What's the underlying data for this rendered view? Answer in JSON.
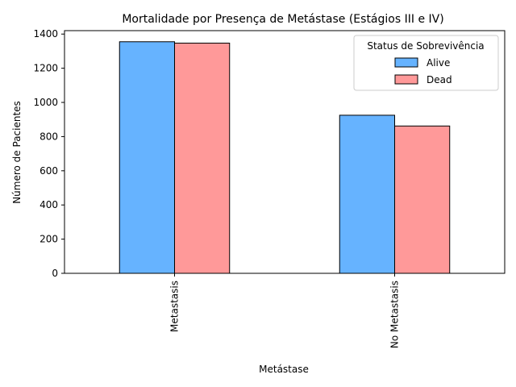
{
  "chart_data": {
    "type": "bar",
    "title": "Mortalidade por Presença de Metástase (Estágios III e IV)",
    "xlabel": "Metástase",
    "ylabel": "Número de Pacientes",
    "categories": [
      "Metastasis",
      "No Metastasis"
    ],
    "series": [
      {
        "name": "Alive",
        "values": [
          1355,
          925
        ],
        "color": "#66b3ff"
      },
      {
        "name": "Dead",
        "values": [
          1347,
          862
        ],
        "color": "#ff9999"
      }
    ],
    "ylim": [
      0,
      1420
    ],
    "yticks": [
      0,
      200,
      400,
      600,
      800,
      1000,
      1200,
      1400
    ],
    "legend": {
      "title": "Status de Sobrevivência",
      "placement": "top-right"
    },
    "grid": false
  }
}
